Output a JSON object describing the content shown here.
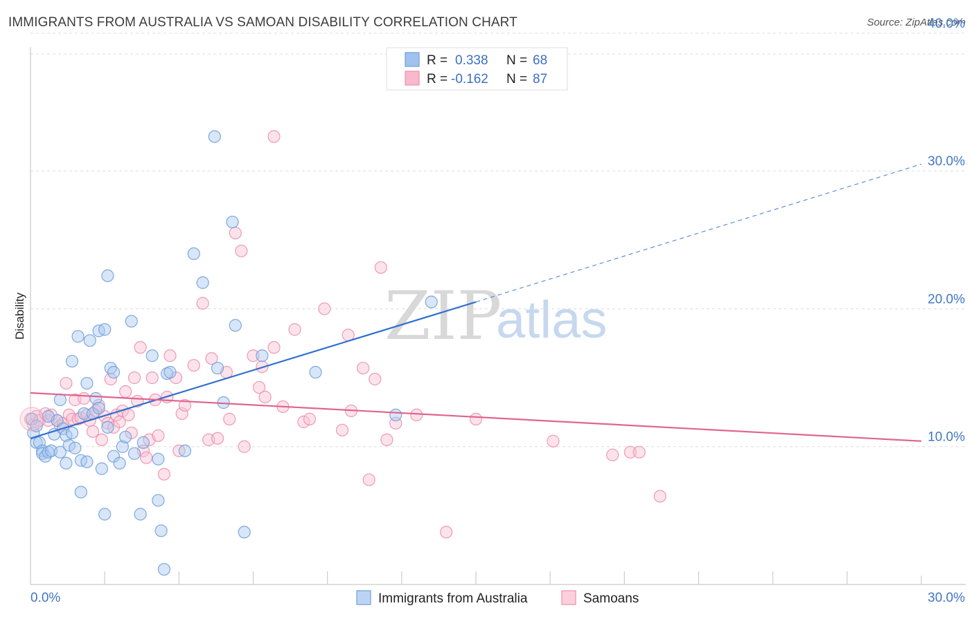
{
  "title": "IMMIGRANTS FROM AUSTRALIA VS SAMOAN DISABILITY CORRELATION CHART",
  "source": "Source: ZipAtlas.com",
  "watermark": {
    "zip": "ZIP",
    "atlas": "atlas"
  },
  "legend": {
    "rows": [
      {
        "r_label": "R =",
        "r_value": "0.338",
        "n_label": "N =",
        "n_value": "68",
        "color": "#9fc2ee",
        "stroke": "#6f9fdc"
      },
      {
        "r_label": "R =",
        "r_value": "-0.162",
        "n_label": "N =",
        "n_value": "87",
        "color": "#f7b9cc",
        "stroke": "#ec8fac"
      }
    ]
  },
  "bottom_legend": {
    "items": [
      {
        "label": "Immigrants from Australia",
        "color": "#bcd4f3",
        "stroke": "#6f9fdc"
      },
      {
        "label": "Samoans",
        "color": "#fbd0dc",
        "stroke": "#ec8fac"
      }
    ]
  },
  "chart_data": {
    "type": "scatter",
    "title": "IMMIGRANTS FROM AUSTRALIA VS SAMOAN DISABILITY CORRELATION CHART",
    "xlabel": "",
    "ylabel": "Disability",
    "xlim": [
      0,
      30
    ],
    "ylim": [
      0,
      40.5
    ],
    "x_tick_labels": [
      "0.0%",
      "30.0%"
    ],
    "y_ticks": [
      10,
      20,
      30,
      40
    ],
    "y_tick_labels": [
      "10.0%",
      "20.0%",
      "30.0%",
      "40.0%"
    ],
    "grid": true,
    "legend_position": "top-center",
    "series": [
      {
        "name": "Immigrants from Australia",
        "color": "#6f9fdc",
        "fill": "#a9c8f0",
        "trend": {
          "x": [
            0,
            15
          ],
          "y": [
            10.6,
            20.5
          ],
          "extended_to": [
            30,
            30.5
          ]
        },
        "points": [
          [
            0.1,
            11.0
          ],
          [
            0.2,
            10.3
          ],
          [
            0.3,
            10.3
          ],
          [
            0.4,
            9.7
          ],
          [
            0.4,
            9.5
          ],
          [
            0.5,
            9.3
          ],
          [
            0.6,
            9.6
          ],
          [
            0.7,
            9.7
          ],
          [
            0.8,
            10.9
          ],
          [
            0.9,
            11.9
          ],
          [
            1.0,
            9.6
          ],
          [
            1.0,
            13.4
          ],
          [
            1.1,
            11.3
          ],
          [
            1.2,
            8.8
          ],
          [
            1.2,
            10.8
          ],
          [
            1.3,
            10.1
          ],
          [
            1.4,
            11.0
          ],
          [
            1.4,
            16.2
          ],
          [
            1.5,
            9.9
          ],
          [
            1.6,
            18.0
          ],
          [
            1.7,
            6.7
          ],
          [
            1.7,
            9.0
          ],
          [
            1.8,
            12.4
          ],
          [
            1.9,
            8.9
          ],
          [
            1.9,
            14.6
          ],
          [
            2.0,
            17.7
          ],
          [
            2.1,
            12.4
          ],
          [
            2.2,
            13.5
          ],
          [
            2.3,
            12.8
          ],
          [
            2.3,
            18.4
          ],
          [
            2.4,
            8.4
          ],
          [
            2.5,
            18.5
          ],
          [
            2.5,
            5.1
          ],
          [
            2.6,
            11.4
          ],
          [
            2.6,
            22.4
          ],
          [
            2.7,
            15.7
          ],
          [
            2.8,
            9.3
          ],
          [
            2.8,
            15.4
          ],
          [
            3.0,
            8.8
          ],
          [
            3.1,
            10.0
          ],
          [
            3.2,
            10.7
          ],
          [
            3.4,
            19.1
          ],
          [
            3.5,
            9.5
          ],
          [
            3.7,
            5.1
          ],
          [
            3.8,
            10.3
          ],
          [
            4.1,
            16.6
          ],
          [
            4.3,
            9.1
          ],
          [
            4.3,
            6.1
          ],
          [
            4.4,
            3.9
          ],
          [
            4.5,
            1.1
          ],
          [
            4.6,
            15.3
          ],
          [
            4.7,
            15.4
          ],
          [
            5.2,
            9.7
          ],
          [
            5.5,
            24.0
          ],
          [
            5.8,
            21.9
          ],
          [
            6.2,
            32.5
          ],
          [
            6.3,
            15.7
          ],
          [
            6.5,
            13.2
          ],
          [
            6.8,
            26.3
          ],
          [
            6.9,
            18.8
          ],
          [
            7.2,
            3.8
          ],
          [
            7.8,
            16.6
          ],
          [
            9.6,
            15.4
          ],
          [
            12.3,
            12.3
          ],
          [
            13.5,
            20.5
          ],
          [
            0.05,
            12.0
          ],
          [
            0.2,
            11.5
          ],
          [
            0.6,
            12.2
          ]
        ]
      },
      {
        "name": "Samoans",
        "color": "#ec8fac",
        "fill": "#f8c2d2",
        "trend": {
          "x": [
            0,
            30
          ],
          "y": [
            13.9,
            10.4
          ]
        },
        "points": [
          [
            0.0,
            12.0
          ],
          [
            0.1,
            11.6
          ],
          [
            0.2,
            12.2
          ],
          [
            0.3,
            11.9
          ],
          [
            0.5,
            12.4
          ],
          [
            0.6,
            11.9
          ],
          [
            0.7,
            12.3
          ],
          [
            0.9,
            11.9
          ],
          [
            1.0,
            11.5
          ],
          [
            1.1,
            11.7
          ],
          [
            1.2,
            14.6
          ],
          [
            1.3,
            12.3
          ],
          [
            1.4,
            12.0
          ],
          [
            1.5,
            13.4
          ],
          [
            1.6,
            12.0
          ],
          [
            1.7,
            12.1
          ],
          [
            1.8,
            13.5
          ],
          [
            1.9,
            12.3
          ],
          [
            2.0,
            11.9
          ],
          [
            2.1,
            11.1
          ],
          [
            2.2,
            12.6
          ],
          [
            2.3,
            13.0
          ],
          [
            2.4,
            10.5
          ],
          [
            2.5,
            12.2
          ],
          [
            2.6,
            11.7
          ],
          [
            2.7,
            14.9
          ],
          [
            2.8,
            11.4
          ],
          [
            2.9,
            12.3
          ],
          [
            3.0,
            11.8
          ],
          [
            3.1,
            12.6
          ],
          [
            3.2,
            14.0
          ],
          [
            3.3,
            12.3
          ],
          [
            3.4,
            11.0
          ],
          [
            3.5,
            15.0
          ],
          [
            3.6,
            13.3
          ],
          [
            3.7,
            17.2
          ],
          [
            3.8,
            9.7
          ],
          [
            3.9,
            9.2
          ],
          [
            4.0,
            10.5
          ],
          [
            4.1,
            15.0
          ],
          [
            4.2,
            13.4
          ],
          [
            4.3,
            10.8
          ],
          [
            4.5,
            8.0
          ],
          [
            4.6,
            13.6
          ],
          [
            4.7,
            16.6
          ],
          [
            4.9,
            15.0
          ],
          [
            5.0,
            9.7
          ],
          [
            5.1,
            12.4
          ],
          [
            5.2,
            13.0
          ],
          [
            5.5,
            15.9
          ],
          [
            5.8,
            20.4
          ],
          [
            6.0,
            10.5
          ],
          [
            6.1,
            16.4
          ],
          [
            6.3,
            10.6
          ],
          [
            6.6,
            15.4
          ],
          [
            6.7,
            12.0
          ],
          [
            6.9,
            25.5
          ],
          [
            7.1,
            24.2
          ],
          [
            7.2,
            10.0
          ],
          [
            7.5,
            16.6
          ],
          [
            7.7,
            14.3
          ],
          [
            7.8,
            15.8
          ],
          [
            7.9,
            13.6
          ],
          [
            8.2,
            17.2
          ],
          [
            8.2,
            32.5
          ],
          [
            8.5,
            12.9
          ],
          [
            8.9,
            18.5
          ],
          [
            9.2,
            11.8
          ],
          [
            9.4,
            12.0
          ],
          [
            9.9,
            20.0
          ],
          [
            10.5,
            11.2
          ],
          [
            10.7,
            18.1
          ],
          [
            10.8,
            12.6
          ],
          [
            11.2,
            15.7
          ],
          [
            11.4,
            7.6
          ],
          [
            11.6,
            14.9
          ],
          [
            11.8,
            23.0
          ],
          [
            12.0,
            10.5
          ],
          [
            12.3,
            11.7
          ],
          [
            13.0,
            12.3
          ],
          [
            14.0,
            3.8
          ],
          [
            15.0,
            12.0
          ],
          [
            17.6,
            10.4
          ],
          [
            19.6,
            9.4
          ],
          [
            20.2,
            9.6
          ],
          [
            20.5,
            9.6
          ],
          [
            21.2,
            6.4
          ]
        ]
      }
    ]
  }
}
